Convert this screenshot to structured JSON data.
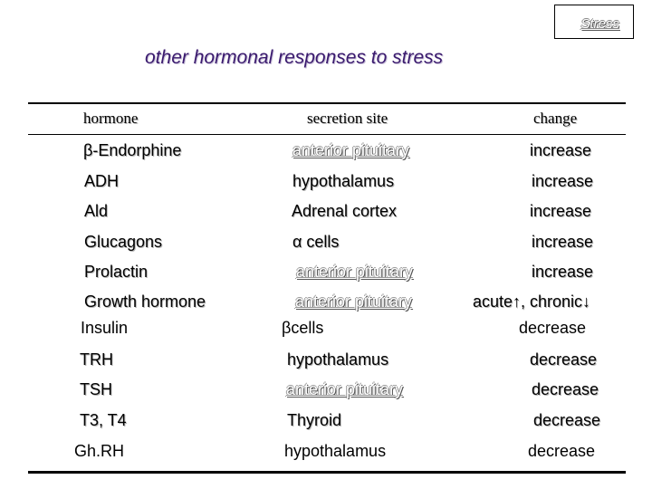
{
  "nav": {
    "label": "Stress"
  },
  "title": "other hormonal responses to stress",
  "columns": {
    "hormone": "hormone",
    "site": "secretion site",
    "change": "change"
  },
  "rows": [
    {
      "hormone": "β-Endorphine",
      "site": "anterior pituitary",
      "change": "increase"
    },
    {
      "hormone": "ADH",
      "site": "hypothalamus",
      "change": "increase"
    },
    {
      "hormone": "Ald",
      "site": "Adrenal cortex",
      "change": "increase"
    },
    {
      "hormone": "Glucagons",
      "site": "α cells",
      "change": "increase"
    },
    {
      "hormone": "Prolactin",
      "site": "anterior pituitary",
      "change": "increase"
    },
    {
      "hormone": "Growth hormone",
      "site": "anterior pituitary",
      "change": "acute↑, chronic↓"
    },
    {
      "hormone": "Insulin",
      "site": "βcells",
      "change": "decrease"
    },
    {
      "hormone": "TRH",
      "site": "hypothalamus",
      "change": "decrease"
    },
    {
      "hormone": "TSH",
      "site": "anterior pituitary",
      "change": "decrease"
    },
    {
      "hormone": "T3, T4",
      "site": "Thyroid",
      "change": "decrease"
    },
    {
      "hormone": "Gh.RH",
      "site": "hypothalamus",
      "change": "decrease"
    }
  ]
}
